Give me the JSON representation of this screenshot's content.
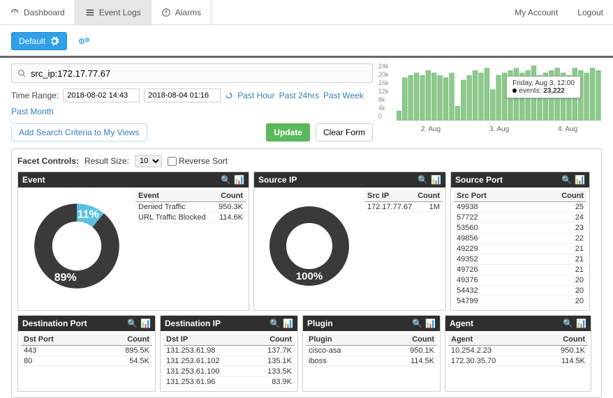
{
  "nav": {
    "tabs": [
      {
        "label": "Dashboard",
        "icon": "gauge"
      },
      {
        "label": "Event Logs",
        "icon": "list",
        "active": true
      },
      {
        "label": "Alarms",
        "icon": "alert"
      }
    ],
    "my_account": "My Account",
    "logout": "Logout"
  },
  "subbar": {
    "default_btn": "Default"
  },
  "search": {
    "query": "src_ip:172.17.77.67",
    "time_label": "Time Range:",
    "start": "2018-08-02 14:43",
    "end": "2018-08-04 01:16",
    "quick": [
      "Past Hour",
      "Past 24hrs",
      "Past Week",
      "Past Month"
    ],
    "add_view": "Add Search Criteria to My Views",
    "update": "Update",
    "clear": "Clear Form"
  },
  "timeline": {
    "yticks": [
      "24k",
      "20k",
      "16k",
      "12k",
      "8k",
      "4k",
      "0"
    ],
    "xticks": [
      "2. Aug",
      "3. Aug",
      "4. Aug"
    ],
    "tooltip_time": "Friday, Aug 3, 12:00",
    "tooltip_label": "events:",
    "tooltip_value": "23,222",
    "bar_color": "#8dc98d",
    "bar_border": "#5fae5f",
    "values": [
      4,
      18,
      19,
      20,
      19,
      21,
      20,
      19,
      18,
      20,
      6,
      17,
      19,
      21,
      20,
      22,
      13,
      19,
      20,
      21,
      22,
      20,
      21,
      23,
      19,
      20,
      21,
      22,
      20,
      19,
      22,
      21,
      20,
      22,
      21
    ]
  },
  "facet": {
    "label": "Facet Controls:",
    "result_size_label": "Result Size:",
    "result_size": "10",
    "reverse": "Reverse Sort"
  },
  "panels": {
    "event": {
      "title": "Event",
      "col1": "Event",
      "col2": "Count",
      "donut": {
        "slices": [
          {
            "pct": 11,
            "color": "#5bc0de",
            "label": "11%"
          },
          {
            "pct": 89,
            "color": "#3a3a3a",
            "label": "89%"
          }
        ]
      },
      "rows": [
        [
          "Denied Traffic",
          "950.3K"
        ],
        [
          "URL Traffic Blocked",
          "114.6K"
        ]
      ]
    },
    "sourceip": {
      "title": "Source IP",
      "col1": "Src IP",
      "col2": "Count",
      "donut": {
        "slices": [
          {
            "pct": 100,
            "color": "#3a3a3a",
            "label": "100%"
          }
        ]
      },
      "rows": [
        [
          "172.17.77.67",
          "1M"
        ]
      ]
    },
    "sourceport": {
      "title": "Source Port",
      "col1": "Src Port",
      "col2": "Count",
      "rows": [
        [
          "49938",
          "25"
        ],
        [
          "57722",
          "24"
        ],
        [
          "53560",
          "23"
        ],
        [
          "49856",
          "22"
        ],
        [
          "49229",
          "21"
        ],
        [
          "49352",
          "21"
        ],
        [
          "49726",
          "21"
        ],
        [
          "49376",
          "20"
        ],
        [
          "54432",
          "20"
        ],
        [
          "54799",
          "20"
        ]
      ]
    },
    "dstport": {
      "title": "Destination Port",
      "col1": "Dst Port",
      "col2": "Count",
      "rows": [
        [
          "443",
          "895.5K"
        ],
        [
          "80",
          "54.5K"
        ]
      ]
    },
    "dstip": {
      "title": "Destination IP",
      "col1": "Dst IP",
      "col2": "Count",
      "rows": [
        [
          "131.253.61.98",
          "137.7K"
        ],
        [
          "131.253.61.102",
          "135.1K"
        ],
        [
          "131.253.61.100",
          "133.5K"
        ],
        [
          "131.253.61.96",
          "83.9K"
        ]
      ]
    },
    "plugin": {
      "title": "Plugin",
      "col1": "Plugin",
      "col2": "Count",
      "rows": [
        [
          "cisco-asa",
          "950.1K"
        ],
        [
          "iboss",
          "114.5K"
        ]
      ]
    },
    "agent": {
      "title": "Agent",
      "col1": "Agent",
      "col2": "Count",
      "rows": [
        [
          "10.254.2.23",
          "950.1K"
        ],
        [
          "172.30.35.70",
          "114.5K"
        ]
      ]
    }
  }
}
